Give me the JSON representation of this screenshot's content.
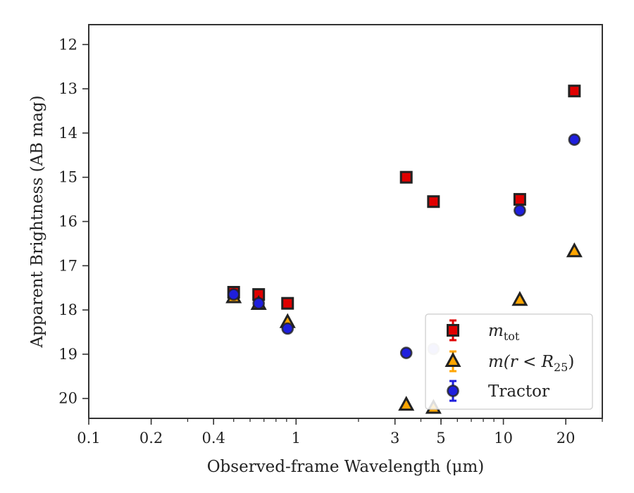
{
  "chart_data": {
    "type": "scatter",
    "title": "",
    "xlabel": "Observed-frame Wavelength (μm)",
    "ylabel": "Apparent Brightness (AB mag)",
    "x_scale": "log",
    "xlim": [
      0.1,
      30
    ],
    "ylim": [
      20.45,
      11.55
    ],
    "y_inverted": true,
    "x_ticks": [
      0.1,
      0.2,
      0.4,
      1,
      3,
      5,
      10,
      20
    ],
    "x_tick_labels": [
      "0.1",
      "0.2",
      "0.4",
      "1",
      "3",
      "5",
      "10",
      "20"
    ],
    "y_ticks": [
      12,
      13,
      14,
      15,
      16,
      17,
      18,
      19,
      20
    ],
    "y_tick_labels": [
      "12",
      "13",
      "14",
      "15",
      "16",
      "17",
      "18",
      "19",
      "20"
    ],
    "grid": false,
    "legend_position": "lower-right",
    "series": [
      {
        "name": "m_tot",
        "marker": "square",
        "color": "#e00000",
        "edge_color": "#222222",
        "points": [
          {
            "x": 0.5,
            "y": 17.6
          },
          {
            "x": 0.66,
            "y": 17.65
          },
          {
            "x": 0.91,
            "y": 17.85
          },
          {
            "x": 3.4,
            "y": 15.0
          },
          {
            "x": 4.6,
            "y": 15.55
          },
          {
            "x": 12.0,
            "y": 15.5
          },
          {
            "x": 22.0,
            "y": 13.05
          }
        ]
      },
      {
        "name": "m(r < R25)",
        "marker": "triangle",
        "color": "#ffa500",
        "edge_color": "#222222",
        "points": [
          {
            "x": 0.5,
            "y": 17.72
          },
          {
            "x": 0.66,
            "y": 17.87
          },
          {
            "x": 0.91,
            "y": 18.28
          },
          {
            "x": 3.4,
            "y": 20.15
          },
          {
            "x": 4.6,
            "y": 20.22
          },
          {
            "x": 12.0,
            "y": 17.78
          },
          {
            "x": 22.0,
            "y": 16.68
          }
        ]
      },
      {
        "name": "Tractor",
        "marker": "circle",
        "color": "#1f1fdd",
        "edge_color": "#222222",
        "points": [
          {
            "x": 0.5,
            "y": 17.65
          },
          {
            "x": 0.66,
            "y": 17.85
          },
          {
            "x": 0.91,
            "y": 18.42
          },
          {
            "x": 3.4,
            "y": 18.97
          },
          {
            "x": 4.6,
            "y": 18.88,
            "faded": true
          },
          {
            "x": 12.0,
            "y": 15.75
          },
          {
            "x": 22.0,
            "y": 14.15
          }
        ]
      }
    ]
  },
  "legend": {
    "items": [
      {
        "text": "m",
        "sub": "tot",
        "rest": "",
        "marker": "square"
      },
      {
        "text": "m(r < R",
        "sub": "25",
        "rest": ")",
        "marker": "triangle"
      },
      {
        "text": "Tractor",
        "sub": "",
        "rest": "",
        "marker": "circle"
      }
    ]
  }
}
